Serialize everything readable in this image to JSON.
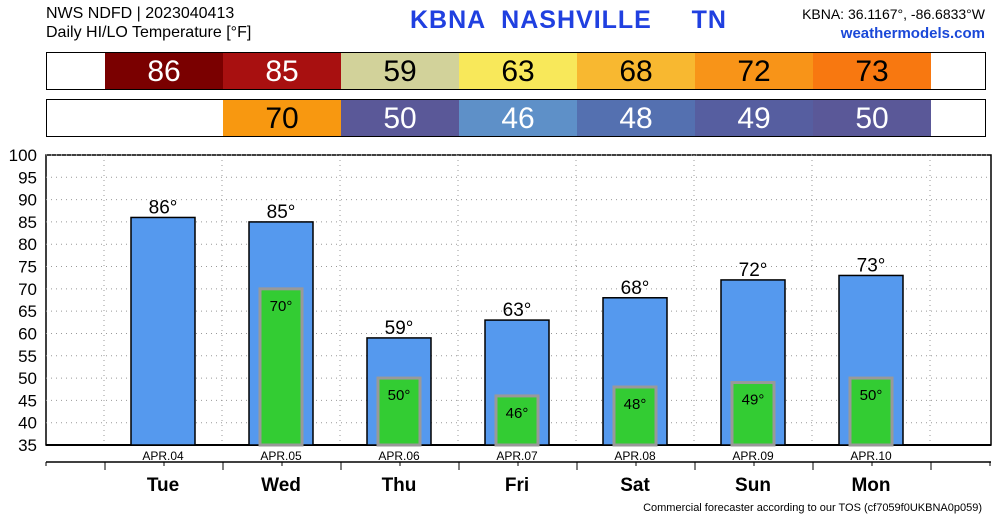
{
  "header": {
    "line1": "NWS NDFD | 2023040413",
    "line2": "Daily HI/LO Temperature [°F]",
    "station": "KBNA  NASHVILLE     TN",
    "coords": "KBNA: 36.1167°, -86.6833°W",
    "site": "weathermodels.com"
  },
  "footer": "Commercial forecaster according to our TOS (cf7059f0UKBNA0p059)",
  "strip_hi": [
    {
      "v": "86",
      "bg": "#7a0000",
      "fg": "#ffffff"
    },
    {
      "v": "85",
      "bg": "#a81010",
      "fg": "#ffffff"
    },
    {
      "v": "59",
      "bg": "#d2d29a",
      "fg": "#000000"
    },
    {
      "v": "63",
      "bg": "#f8e85a",
      "fg": "#000000"
    },
    {
      "v": "68",
      "bg": "#f8b830",
      "fg": "#000000"
    },
    {
      "v": "72",
      "bg": "#f89418",
      "fg": "#000000"
    },
    {
      "v": "73",
      "bg": "#f87810",
      "fg": "#000000"
    }
  ],
  "strip_lo": [
    {
      "v": "",
      "bg": "#ffffff",
      "fg": "#000000"
    },
    {
      "v": "70",
      "bg": "#f89810",
      "fg": "#000000"
    },
    {
      "v": "50",
      "bg": "#5a5898",
      "fg": "#ffffff"
    },
    {
      "v": "46",
      "bg": "#5e90c8",
      "fg": "#ffffff"
    },
    {
      "v": "48",
      "bg": "#5470b0",
      "fg": "#ffffff"
    },
    {
      "v": "49",
      "bg": "#565ea0",
      "fg": "#ffffff"
    },
    {
      "v": "50",
      "bg": "#5a5898",
      "fg": "#ffffff"
    }
  ],
  "chart_data": {
    "type": "bar",
    "categories": [
      "Tue",
      "Wed",
      "Thu",
      "Fri",
      "Sat",
      "Sun",
      "Mon"
    ],
    "dates": [
      "APR.04",
      "APR.05",
      "APR.06",
      "APR.07",
      "APR.08",
      "APR.09",
      "APR.10"
    ],
    "series": [
      {
        "values": [
          86,
          85,
          59,
          63,
          68,
          72,
          73
        ],
        "color": "#5599ee"
      },
      {
        "values": [
          null,
          70,
          50,
          46,
          48,
          49,
          50
        ],
        "color": "#33cc33"
      }
    ],
    "hi_labels": [
      "86°",
      "85°",
      "59°",
      "63°",
      "68°",
      "72°",
      "73°"
    ],
    "lo_labels": [
      "",
      "70°",
      "50°",
      "46°",
      "48°",
      "49°",
      "50°"
    ],
    "yticks": [
      "35",
      "40",
      "45",
      "50",
      "55",
      "60",
      "65",
      "70",
      "75",
      "80",
      "85",
      "90",
      "95",
      "100"
    ],
    "ylim": [
      35,
      100
    ],
    "grid": true
  }
}
